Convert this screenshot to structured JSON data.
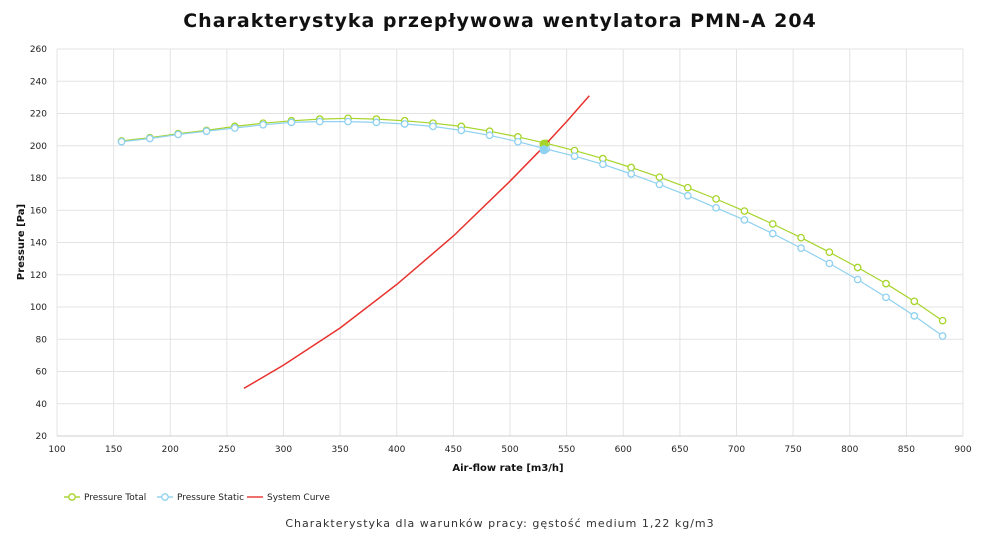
{
  "chart_data": {
    "type": "line",
    "title": "Charakterystyka przepływowa wentylatora PMN-A 204",
    "subtitle": "Charakterystyka dla warunków pracy: gęstość medium 1,22 kg/m3",
    "xlabel": "Air-flow rate [m3/h]",
    "ylabel": "Pressure [Pa]",
    "xlim": [
      100,
      900
    ],
    "ylim": [
      20,
      260
    ],
    "x_ticks": [
      100,
      150,
      200,
      250,
      300,
      350,
      400,
      450,
      500,
      550,
      600,
      650,
      700,
      750,
      800,
      850,
      900
    ],
    "y_ticks": [
      20,
      40,
      60,
      80,
      100,
      120,
      140,
      160,
      180,
      200,
      220,
      240,
      260
    ],
    "grid": true,
    "legend_position": "bottom-left",
    "series": [
      {
        "name": "Pressure Total",
        "color": "#a6d42a",
        "marker": "open-circle",
        "x": [
          157,
          182,
          207,
          232,
          257,
          282,
          307,
          332,
          357,
          382,
          407,
          432,
          457,
          482,
          507,
          532,
          557,
          582,
          607,
          632,
          657,
          682,
          707,
          732,
          757,
          782,
          807,
          832,
          857,
          882
        ],
        "y": [
          203,
          205,
          207.5,
          209.5,
          212,
          214,
          215.5,
          216.5,
          217,
          216.5,
          215.5,
          214,
          212,
          209,
          205.5,
          201.5,
          197,
          192,
          186.5,
          180.5,
          174,
          167,
          159.5,
          151.5,
          143,
          134,
          124.5,
          114.5,
          103.5,
          91.5
        ]
      },
      {
        "name": "Pressure Static",
        "color": "#8fd1f0",
        "marker": "open-circle",
        "x": [
          157,
          182,
          207,
          232,
          257,
          282,
          307,
          332,
          357,
          382,
          407,
          432,
          457,
          482,
          507,
          532,
          557,
          582,
          607,
          632,
          657,
          682,
          707,
          732,
          757,
          782,
          807,
          832,
          857,
          882
        ],
        "y": [
          202.5,
          204.5,
          207,
          209,
          211,
          213,
          214.5,
          215,
          215,
          214.5,
          213.5,
          212,
          209.5,
          206.5,
          202.5,
          198,
          193.5,
          188.5,
          182.5,
          176,
          169,
          161.5,
          154,
          145.5,
          136.5,
          127,
          117,
          106,
          94.5,
          82
        ]
      },
      {
        "name": "System Curve",
        "color": "#e8322d",
        "marker": "none",
        "curve": "y = k * x^2",
        "x": [
          265,
          300,
          350,
          400,
          450,
          500,
          525,
          550,
          570
        ],
        "y": [
          49.5,
          64,
          87,
          114,
          144,
          178,
          196,
          215,
          231
        ]
      }
    ],
    "operating_point": {
      "x": 530,
      "y": 201
    }
  }
}
